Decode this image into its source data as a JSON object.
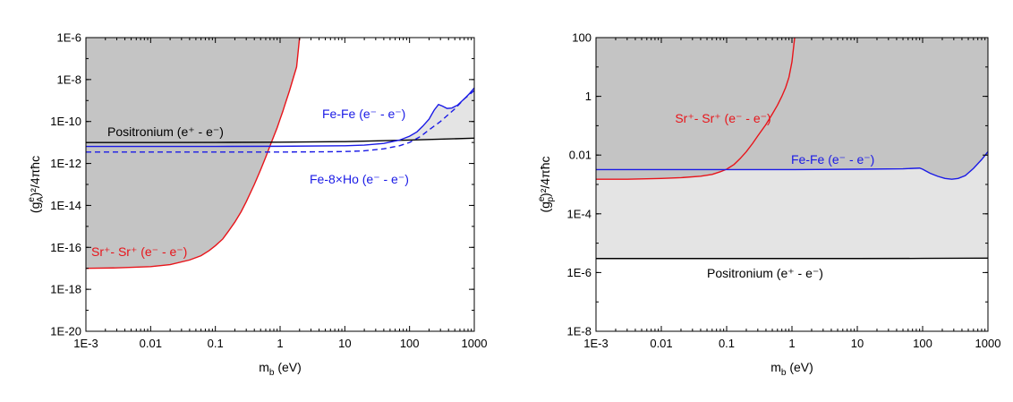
{
  "chart_data": [
    {
      "type": "line",
      "xlabel": "m",
      "xlabel_sub": "b",
      "xlabel_unit": " (eV)",
      "ylabel": "(g",
      "ylabel_sup": "e",
      "ylabel_sub": "A",
      "ylabel_tail": ")²/4πħc",
      "xscale": "log",
      "yscale": "log",
      "xlim": [
        0.001,
        1000
      ],
      "ylim": [
        1e-20,
        1e-06
      ],
      "xticks": [
        {
          "v": 0.001,
          "label": "1E-3"
        },
        {
          "v": 0.01,
          "label": "0.01"
        },
        {
          "v": 0.1,
          "label": "0.1"
        },
        {
          "v": 1,
          "label": "1"
        },
        {
          "v": 10,
          "label": "10"
        },
        {
          "v": 100,
          "label": "100"
        },
        {
          "v": 1000,
          "label": "1000"
        }
      ],
      "yticks": [
        {
          "v": 1e-06,
          "label": "1E-6"
        },
        {
          "v": 1e-08,
          "label": "1E-8"
        },
        {
          "v": 1e-10,
          "label": "1E-10"
        },
        {
          "v": 1e-12,
          "label": "1E-12"
        },
        {
          "v": 1e-14,
          "label": "1E-14"
        },
        {
          "v": 1e-16,
          "label": "1E-16"
        },
        {
          "v": 1e-18,
          "label": "1E-18"
        },
        {
          "v": 1e-20,
          "label": "1E-20"
        }
      ],
      "shaded_regions": [
        {
          "color": "#c4c4c4",
          "above_series": "Sr+ - Sr+ (e- - e-)"
        },
        {
          "color": "#e4e4e4",
          "between": [
            "Fe-Fe (e- - e-)",
            "Positronium (e+ - e-)"
          ]
        }
      ],
      "series": [
        {
          "name": "Sr+ - Sr+ (e- - e-)",
          "color": "#e8141a",
          "dash": false,
          "x": [
            0.001,
            0.003,
            0.01,
            0.02,
            0.04,
            0.06,
            0.08,
            0.1,
            0.13,
            0.16,
            0.2,
            0.25,
            0.3,
            0.4,
            0.5,
            0.6,
            0.7,
            0.8,
            0.9,
            1.0,
            1.1,
            1.2,
            1.4,
            1.6,
            1.8,
            2.0
          ],
          "y": [
            1e-17,
            1.05e-17,
            1.2e-17,
            1.5e-17,
            2.5e-17,
            4e-17,
            7e-17,
            1.2e-16,
            2.5e-16,
            6e-16,
            1.6e-15,
            5e-15,
            1.5e-14,
            1e-13,
            5e-13,
            2e-12,
            7e-12,
            2e-11,
            5e-11,
            1.3e-10,
            3e-10,
            7e-10,
            3e-09,
            1.2e-08,
            4e-08,
            1e-06
          ]
        },
        {
          "name": "Positronium (e+ - e-)",
          "color": "#000000",
          "dash": false,
          "x": [
            0.001,
            0.01,
            0.1,
            1,
            10,
            100,
            1000
          ],
          "y": [
            1e-11,
            1e-11,
            1.01e-11,
            1.03e-11,
            1.1e-11,
            1.3e-11,
            1.6e-11
          ]
        },
        {
          "name": "Fe-Fe (e- - e-)",
          "color": "#1a1ae6",
          "dash": false,
          "x": [
            0.001,
            0.1,
            1,
            10,
            20,
            40,
            70,
            100,
            130,
            160,
            200,
            240,
            280,
            320,
            380,
            450,
            550,
            700,
            850,
            1000
          ],
          "y": [
            6.5e-12,
            6.5e-12,
            6.6e-12,
            7e-12,
            7.5e-12,
            9e-12,
            1.3e-11,
            2e-11,
            3.2e-11,
            6e-11,
            1.3e-10,
            3.5e-10,
            6.5e-10,
            5.5e-10,
            4.2e-10,
            4.4e-10,
            6e-10,
            1.2e-09,
            2.2e-09,
            4e-09
          ]
        },
        {
          "name": "Fe-8×Ho (e- - e-)",
          "color": "#1a1ae6",
          "dash": true,
          "x": [
            0.001,
            0.1,
            1,
            5,
            10,
            20,
            40,
            70,
            100,
            150,
            200,
            300,
            500,
            700,
            1000
          ],
          "y": [
            3.5e-12,
            3.5e-12,
            3.5e-12,
            3.6e-12,
            3.7e-12,
            4e-12,
            5e-12,
            7e-12,
            1e-11,
            2e-11,
            4e-11,
            1e-10,
            4e-10,
            1.2e-09,
            3e-09
          ]
        }
      ],
      "annotations": [
        {
          "text": "Positronium (e⁺ - e⁻)",
          "color": "#000000"
        },
        {
          "text": "Fe-Fe (e⁻ - e⁻)",
          "color": "#1a1ae6"
        },
        {
          "text": "Fe-8×Ho (e⁻ - e⁻)",
          "color": "#1a1ae6"
        },
        {
          "text": "Sr⁺- Sr⁺ (e⁻ - e⁻)",
          "color": "#e8141a"
        }
      ]
    },
    {
      "type": "line",
      "xlabel": "m",
      "xlabel_sub": "b",
      "xlabel_unit": " (eV)",
      "ylabel": "(g",
      "ylabel_sup": "e",
      "ylabel_sub": "p",
      "ylabel_tail": ")²/4πħc",
      "xscale": "log",
      "yscale": "log",
      "xlim": [
        0.001,
        1000
      ],
      "ylim": [
        1e-08,
        100
      ],
      "xticks": [
        {
          "v": 0.001,
          "label": "1E-3"
        },
        {
          "v": 0.01,
          "label": "0.01"
        },
        {
          "v": 0.1,
          "label": "0.1"
        },
        {
          "v": 1,
          "label": "1"
        },
        {
          "v": 10,
          "label": "10"
        },
        {
          "v": 100,
          "label": "100"
        },
        {
          "v": 1000,
          "label": "1000"
        }
      ],
      "yticks": [
        {
          "v": 100,
          "label": "100"
        },
        {
          "v": 1,
          "label": "1"
        },
        {
          "v": 0.01,
          "label": "0.01"
        },
        {
          "v": 0.0001,
          "label": "1E-4"
        },
        {
          "v": 1e-06,
          "label": "1E-6"
        },
        {
          "v": 1e-08,
          "label": "1E-8"
        }
      ],
      "shaded_regions": [
        {
          "color": "#e4e4e4",
          "above_series": "Positronium (e+ - e-)"
        },
        {
          "color": "#c4c4c4",
          "above_series": "min(Sr+ - Sr+, Fe-Fe)"
        }
      ],
      "series": [
        {
          "name": "Sr+ - Sr+ (e- - e-)",
          "color": "#e8141a",
          "dash": false,
          "x": [
            0.001,
            0.003,
            0.01,
            0.02,
            0.04,
            0.06,
            0.08,
            0.1,
            0.13,
            0.16,
            0.2,
            0.25,
            0.3,
            0.4,
            0.5,
            0.6,
            0.7,
            0.8,
            0.9,
            1.0,
            1.1
          ],
          "y": [
            0.0015,
            0.0015,
            0.0016,
            0.0017,
            0.0019,
            0.0022,
            0.0027,
            0.0033,
            0.0048,
            0.0075,
            0.013,
            0.025,
            0.045,
            0.11,
            0.25,
            0.5,
            1.0,
            2.0,
            4.5,
            15,
            100
          ]
        },
        {
          "name": "Fe-Fe (e- - e-)",
          "color": "#1a1ae6",
          "dash": false,
          "x": [
            0.001,
            0.1,
            1,
            10,
            50,
            90,
            100,
            130,
            170,
            220,
            280,
            350,
            450,
            600,
            800,
            1000
          ],
          "y": [
            0.0032,
            0.0032,
            0.0032,
            0.0033,
            0.0034,
            0.0036,
            0.0033,
            0.0024,
            0.0019,
            0.0016,
            0.0015,
            0.0016,
            0.002,
            0.0035,
            0.007,
            0.013
          ]
        },
        {
          "name": "Positronium (e+ - e-)",
          "color": "#000000",
          "dash": false,
          "x": [
            0.001,
            0.01,
            0.1,
            1,
            10,
            100,
            1000
          ],
          "y": [
            3e-06,
            3e-06,
            3e-06,
            3e-06,
            3e-06,
            3.03e-06,
            3.1e-06
          ]
        }
      ],
      "annotations": [
        {
          "text": "Sr⁺- Sr⁺ (e⁻ - e⁻)",
          "color": "#e8141a"
        },
        {
          "text": "Fe-Fe (e⁻ - e⁻)",
          "color": "#1a1ae6"
        },
        {
          "text": "Positronium (e⁺ - e⁻)",
          "color": "#000000"
        }
      ]
    }
  ]
}
